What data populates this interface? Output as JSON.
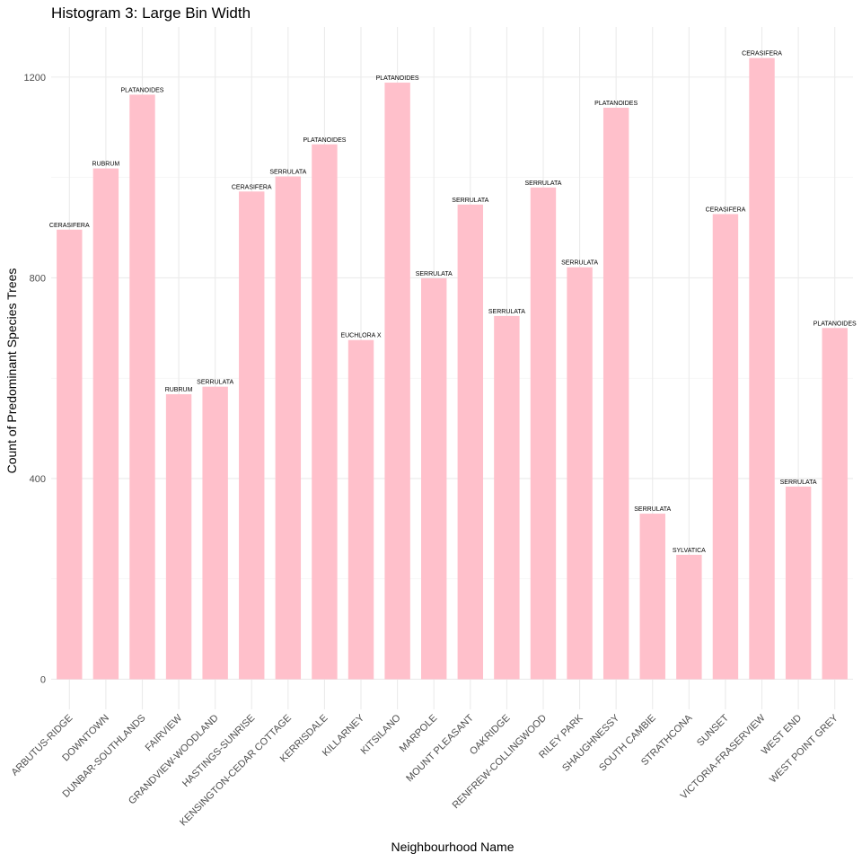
{
  "chart_data": {
    "type": "bar",
    "title": "Histogram 3: Large Bin Width",
    "xlabel": "Neighbourhood Name",
    "ylabel": "Count of Predominant Species Trees",
    "ylim": [
      -60,
      1300
    ],
    "yticks": [
      0,
      400,
      800,
      1200
    ],
    "grid": true,
    "bar_color": "#ffc0cb",
    "categories": [
      "ARBUTUS-RIDGE",
      "DOWNTOWN",
      "DUNBAR-SOUTHLANDS",
      "FAIRVIEW",
      "GRANDVIEW-WOODLAND",
      "HASTINGS-SUNRISE",
      "KENSINGTON-CEDAR COTTAGE",
      "KERRISDALE",
      "KILLARNEY",
      "KITSILANO",
      "MARPOLE",
      "MOUNT PLEASANT",
      "OAKRIDGE",
      "RENFREW-COLLINGWOOD",
      "RILEY PARK",
      "SHAUGHNESSY",
      "SOUTH CAMBIE",
      "STRATHCONA",
      "SUNSET",
      "VICTORIA-FRASERVIEW",
      "WEST END",
      "WEST POINT GREY"
    ],
    "values": [
      896,
      1018,
      1165,
      568,
      583,
      972,
      1002,
      1066,
      676,
      1189,
      799,
      946,
      724,
      980,
      821,
      1139,
      330,
      248,
      927,
      1238,
      384,
      700
    ],
    "labels": [
      "CERASIFERA",
      "RUBRUM",
      "PLATANOIDES",
      "RUBRUM",
      "SERRULATA",
      "CERASIFERA",
      "SERRULATA",
      "PLATANOIDES",
      "EUCHLORA   X",
      "PLATANOIDES",
      "SERRULATA",
      "SERRULATA",
      "SERRULATA",
      "SERRULATA",
      "SERRULATA",
      "PLATANOIDES",
      "SERRULATA",
      "SYLVATICA",
      "CERASIFERA",
      "CERASIFERA",
      "SERRULATA",
      "PLATANOIDES"
    ]
  }
}
